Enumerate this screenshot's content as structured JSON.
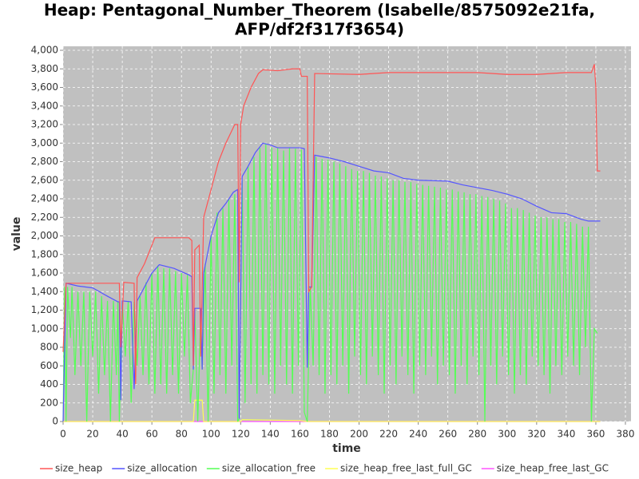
{
  "chart_data": {
    "type": "line",
    "title": [
      "Heap: Pentagonal_Number_Theorem (Isabelle/8575092e21fa,",
      "AFP/df2f317f3654)"
    ],
    "xlabel": "time",
    "ylabel": "value",
    "xlim": [
      0,
      380
    ],
    "xticks": [
      0,
      20,
      40,
      60,
      80,
      100,
      120,
      140,
      160,
      180,
      200,
      220,
      240,
      260,
      280,
      300,
      320,
      340,
      360,
      380
    ],
    "ylim": [
      0,
      4000
    ],
    "yticks": [
      0,
      200,
      400,
      600,
      800,
      {
        "value": 1000,
        "label": "1,000"
      },
      {
        "value": 1200,
        "label": "1,200"
      },
      {
        "value": 1400,
        "label": "1,400"
      },
      {
        "value": 1600,
        "label": "1,600"
      },
      {
        "value": 1800,
        "label": "1,800"
      },
      {
        "value": 2000,
        "label": "2,000"
      },
      {
        "value": 2200,
        "label": "2,200"
      },
      {
        "value": 2400,
        "label": "2,400"
      },
      {
        "value": 2600,
        "label": "2,600"
      },
      {
        "value": 2800,
        "label": "2,800"
      },
      {
        "value": 3000,
        "label": "3,000"
      },
      {
        "value": 3200,
        "label": "3,200"
      },
      {
        "value": 3400,
        "label": "3,400"
      },
      {
        "value": 3600,
        "label": "3,600"
      },
      {
        "value": 3800,
        "label": "3,800"
      },
      {
        "value": 4000,
        "label": "4,000"
      }
    ],
    "grid": true,
    "legend": "bottom",
    "series": [
      {
        "name": "size_heap",
        "color": "#ff5555",
        "x": [
          0,
          2,
          38,
          39,
          41,
          48,
          49,
          50,
          55,
          62,
          85,
          87,
          88,
          89,
          92,
          93,
          95,
          100,
          105,
          110,
          116,
          118,
          119,
          120,
          122,
          127,
          132,
          135,
          145,
          155,
          160,
          161,
          165,
          166,
          168,
          170,
          200,
          220,
          280,
          300,
          320,
          340,
          357,
          359,
          360,
          361,
          363
        ],
        "values": [
          750,
          1490,
          1490,
          800,
          1500,
          1490,
          400,
          1550,
          1700,
          1980,
          1980,
          1950,
          600,
          1850,
          1900,
          700,
          2200,
          2500,
          2800,
          3000,
          3200,
          3200,
          1500,
          3200,
          3400,
          3600,
          3750,
          3790,
          3780,
          3800,
          3800,
          3720,
          3720,
          1400,
          1450,
          3750,
          3740,
          3760,
          3760,
          3740,
          3740,
          3760,
          3760,
          3850,
          3600,
          2700,
          2700
        ]
      },
      {
        "name": "size_allocation",
        "color": "#5555ff",
        "x": [
          0,
          2,
          10,
          20,
          30,
          37,
          38,
          39,
          40,
          46,
          48,
          50,
          55,
          60,
          65,
          75,
          85,
          87,
          88,
          89,
          93,
          94,
          95,
          100,
          105,
          110,
          115,
          118,
          119,
          121,
          125,
          130,
          135,
          140,
          145,
          150,
          160,
          163,
          165,
          166,
          168,
          170,
          180,
          190,
          200,
          210,
          220,
          230,
          240,
          260,
          270,
          280,
          290,
          300,
          310,
          320,
          330,
          340,
          350,
          355,
          363
        ],
        "values": [
          0,
          1490,
          1460,
          1440,
          1350,
          1290,
          1290,
          230,
          1300,
          1290,
          350,
          1300,
          1450,
          1600,
          1690,
          1650,
          1580,
          1560,
          560,
          1220,
          1220,
          560,
          1600,
          2000,
          2250,
          2350,
          2470,
          2500,
          30,
          2640,
          2750,
          2900,
          3000,
          2980,
          2950,
          2950,
          2950,
          2940,
          580,
          1450,
          1450,
          2870,
          2840,
          2800,
          2750,
          2700,
          2680,
          2620,
          2600,
          2590,
          2550,
          2520,
          2490,
          2450,
          2400,
          2320,
          2250,
          2240,
          2180,
          2160,
          2160
        ]
      },
      {
        "name": "size_allocation_free",
        "color": "#55ff55",
        "x": [
          0,
          1,
          2,
          3,
          5,
          6,
          8,
          10,
          12,
          14,
          16,
          18,
          20,
          22,
          24,
          26,
          28,
          30,
          32,
          34,
          36,
          37,
          38,
          40,
          42,
          44,
          46,
          48,
          50,
          52,
          54,
          56,
          58,
          60,
          62,
          64,
          66,
          68,
          70,
          72,
          74,
          76,
          78,
          80,
          82,
          84,
          86,
          88,
          89,
          91,
          93,
          94,
          96,
          98,
          100,
          102,
          104,
          106,
          108,
          110,
          112,
          114,
          116,
          118,
          119,
          121,
          123,
          125,
          127,
          129,
          131,
          133,
          135,
          137,
          139,
          141,
          143,
          145,
          147,
          149,
          151,
          153,
          155,
          157,
          159,
          161,
          163,
          165,
          167,
          169,
          171,
          173,
          175,
          177,
          179,
          181,
          183,
          185,
          187,
          189,
          191,
          193,
          195,
          197,
          199,
          201,
          203,
          205,
          207,
          209,
          211,
          213,
          215,
          217,
          219,
          221,
          223,
          225,
          227,
          229,
          231,
          233,
          235,
          237,
          239,
          241,
          243,
          245,
          247,
          249,
          251,
          253,
          255,
          257,
          259,
          261,
          263,
          265,
          267,
          269,
          271,
          273,
          275,
          277,
          279,
          281,
          283,
          285,
          287,
          289,
          291,
          293,
          295,
          297,
          299,
          301,
          303,
          305,
          307,
          309,
          311,
          313,
          315,
          317,
          319,
          321,
          323,
          325,
          327,
          329,
          331,
          333,
          335,
          337,
          339,
          341,
          343,
          345,
          347,
          349,
          351,
          353,
          355,
          357,
          359,
          361
        ],
        "values": [
          0,
          1450,
          0,
          1450,
          900,
          1450,
          500,
          1400,
          600,
          1400,
          0,
          1400,
          700,
          1400,
          300,
          1350,
          500,
          1300,
          0,
          1300,
          500,
          1290,
          0,
          1300,
          700,
          1300,
          200,
          1290,
          600,
          1350,
          500,
          1500,
          400,
          1600,
          300,
          1680,
          400,
          1650,
          300,
          1650,
          500,
          1620,
          300,
          1600,
          700,
          1580,
          200,
          560,
          1200,
          0,
          1200,
          560,
          1700,
          0,
          2000,
          300,
          2250,
          500,
          2300,
          300,
          2400,
          600,
          2450,
          0,
          30,
          2600,
          200,
          2750,
          400,
          2850,
          300,
          2950,
          500,
          3000,
          400,
          2950,
          300,
          2950,
          600,
          2920,
          400,
          2950,
          300,
          2940,
          600,
          2930,
          100,
          0,
          1450,
          600,
          2850,
          500,
          2830,
          300,
          2820,
          500,
          2800,
          400,
          2780,
          600,
          2750,
          300,
          2720,
          700,
          2700,
          500,
          2700,
          400,
          2680,
          700,
          2650,
          500,
          2640,
          300,
          2620,
          600,
          2600,
          400,
          2600,
          700,
          2580,
          500,
          2580,
          300,
          2560,
          600,
          2550,
          500,
          2540,
          700,
          2530,
          400,
          2520,
          600,
          2500,
          500,
          2500,
          300,
          2480,
          600,
          2470,
          400,
          2450,
          700,
          2450,
          500,
          2430,
          0,
          2420,
          600,
          2400,
          400,
          2380,
          700,
          2350,
          500,
          2300,
          300,
          2300,
          500,
          2280,
          400,
          2250,
          700,
          2220,
          600,
          2200,
          500,
          2200,
          300,
          2180,
          600,
          2180,
          500,
          2150,
          700,
          2150,
          600,
          2130,
          500,
          2100,
          800,
          2100,
          0,
          1000,
          950
        ]
      },
      {
        "name": "size_heap_free_last_full_GC",
        "color": "#ffff55",
        "x": [
          0,
          88,
          89,
          94,
          95,
          120,
          121,
          160,
          165,
          363
        ],
        "values": [
          0,
          0,
          230,
          230,
          0,
          0,
          20,
          10,
          0,
          0
        ]
      },
      {
        "name": "size_heap_free_last_GC",
        "color": "#ff55ff",
        "x": [
          0,
          363
        ],
        "values": [
          0,
          0
        ]
      }
    ]
  }
}
